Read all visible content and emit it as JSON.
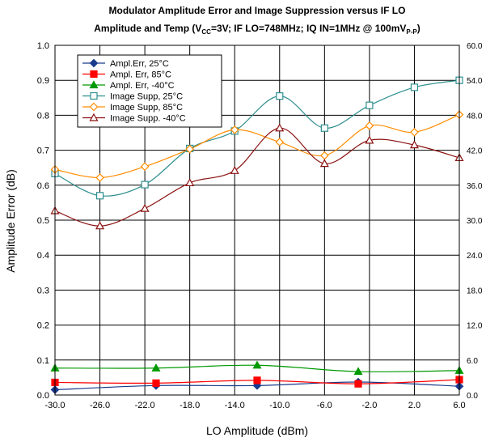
{
  "chart_data": {
    "type": "line",
    "title_line1": "Modulator Amplitude Error and Image Suppression versus IF LO",
    "title_line2_parts": [
      "Amplitude and Temp (V",
      "CC",
      "=3V; IF LO=748MHz; IQ IN=1MHz @ 100mV",
      "P-P",
      ")"
    ],
    "xlabel": "LO Amplitude (dBm)",
    "ylabel": "Amplitude Error (dB)",
    "xlim": [
      -30,
      6
    ],
    "ylim": [
      0,
      1
    ],
    "y2lim": [
      0,
      60
    ],
    "x_ticks": [
      "-30.0",
      "-26.0",
      "-22.0",
      "-18.0",
      "-14.0",
      "-10.0",
      "-6.0",
      "-2.0",
      "2.0",
      "6.0"
    ],
    "y_ticks": [
      "0.0",
      "0.1",
      "0.2",
      "0.3",
      "0.4",
      "0.5",
      "0.6",
      "0.7",
      "0.8",
      "0.9",
      "1.0"
    ],
    "y2_ticks": [
      "0.0",
      "6.0",
      "12.0",
      "18.0",
      "24.0",
      "30.0",
      "36.0",
      "42.0",
      "48.0",
      "54.0",
      "60.0"
    ],
    "grid": true,
    "legend_position": "top-left",
    "series": [
      {
        "name": "Ampl.Err, 25°C",
        "axis": "left",
        "color": "#1a3a8c",
        "marker": "diamond",
        "x": [
          -30,
          -21,
          -12,
          -3,
          6
        ],
        "y": [
          0.015,
          0.027,
          0.027,
          0.037,
          0.025
        ]
      },
      {
        "name": "Ampl. Err, 85°C",
        "axis": "left",
        "color": "#ff0000",
        "marker": "square",
        "x": [
          -30,
          -21,
          -12,
          -3,
          6
        ],
        "y": [
          0.036,
          0.034,
          0.042,
          0.032,
          0.044
        ]
      },
      {
        "name": "Ampl. Err, -40°C",
        "axis": "left",
        "color": "#009900",
        "marker": "triangle",
        "x": [
          -30,
          -21,
          -12,
          -3,
          6
        ],
        "y": [
          0.077,
          0.077,
          0.085,
          0.067,
          0.07
        ]
      },
      {
        "name": "Image Supp, 25°C",
        "axis": "right",
        "color": "#2f8f8f",
        "marker": "square-open",
        "x": [
          -30,
          -26,
          -22,
          -18,
          -14,
          -10,
          -6,
          -2,
          2,
          6
        ],
        "y": [
          38.0,
          34.2,
          36.1,
          42.3,
          45.3,
          51.3,
          45.8,
          49.7,
          52.8,
          54.0
        ]
      },
      {
        "name": "Image Supp, 85°C",
        "axis": "right",
        "color": "#ff8c00",
        "marker": "diamond-open",
        "x": [
          -30,
          -26,
          -22,
          -18,
          -14,
          -10,
          -6,
          -2,
          2,
          6
        ],
        "y": [
          38.7,
          37.3,
          39.2,
          42.2,
          45.5,
          43.4,
          41.1,
          46.2,
          45.1,
          48.1
        ]
      },
      {
        "name": "Image Supp. -40°C",
        "axis": "right",
        "color": "#8b1010",
        "marker": "triangle-open",
        "x": [
          -30,
          -26,
          -22,
          -18,
          -14,
          -10,
          -6,
          -2,
          2,
          6
        ],
        "y": [
          31.6,
          29.0,
          32.0,
          36.4,
          38.5,
          45.8,
          39.7,
          43.7,
          42.9,
          40.7
        ]
      }
    ]
  }
}
